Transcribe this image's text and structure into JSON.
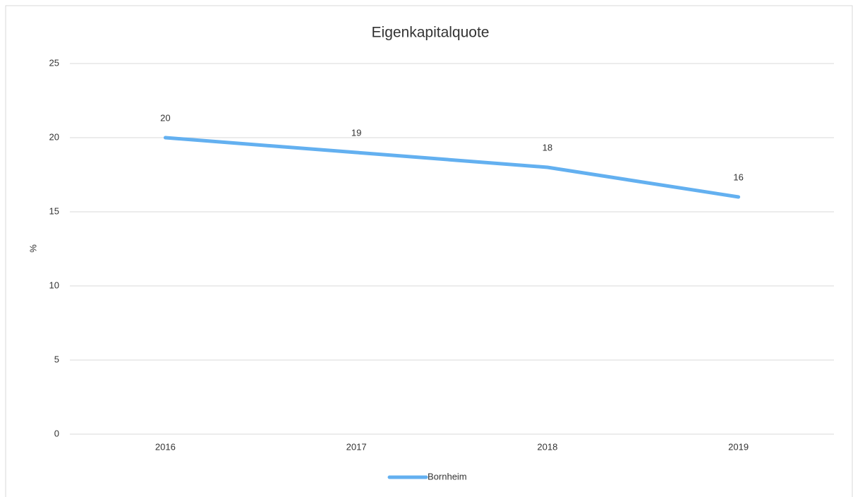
{
  "chart_data": {
    "type": "line",
    "title": "Eigenkapitalquote",
    "y_label": "%",
    "categories": [
      "2016",
      "2017",
      "2018",
      "2019"
    ],
    "series": [
      {
        "name": "Bornheim",
        "color": "#63b0f0",
        "values": [
          20,
          19,
          18,
          16
        ]
      }
    ],
    "ylim": [
      0,
      25
    ],
    "yticks": [
      0,
      5,
      10,
      15,
      20,
      25
    ],
    "grid": true,
    "legend": "bottom"
  }
}
